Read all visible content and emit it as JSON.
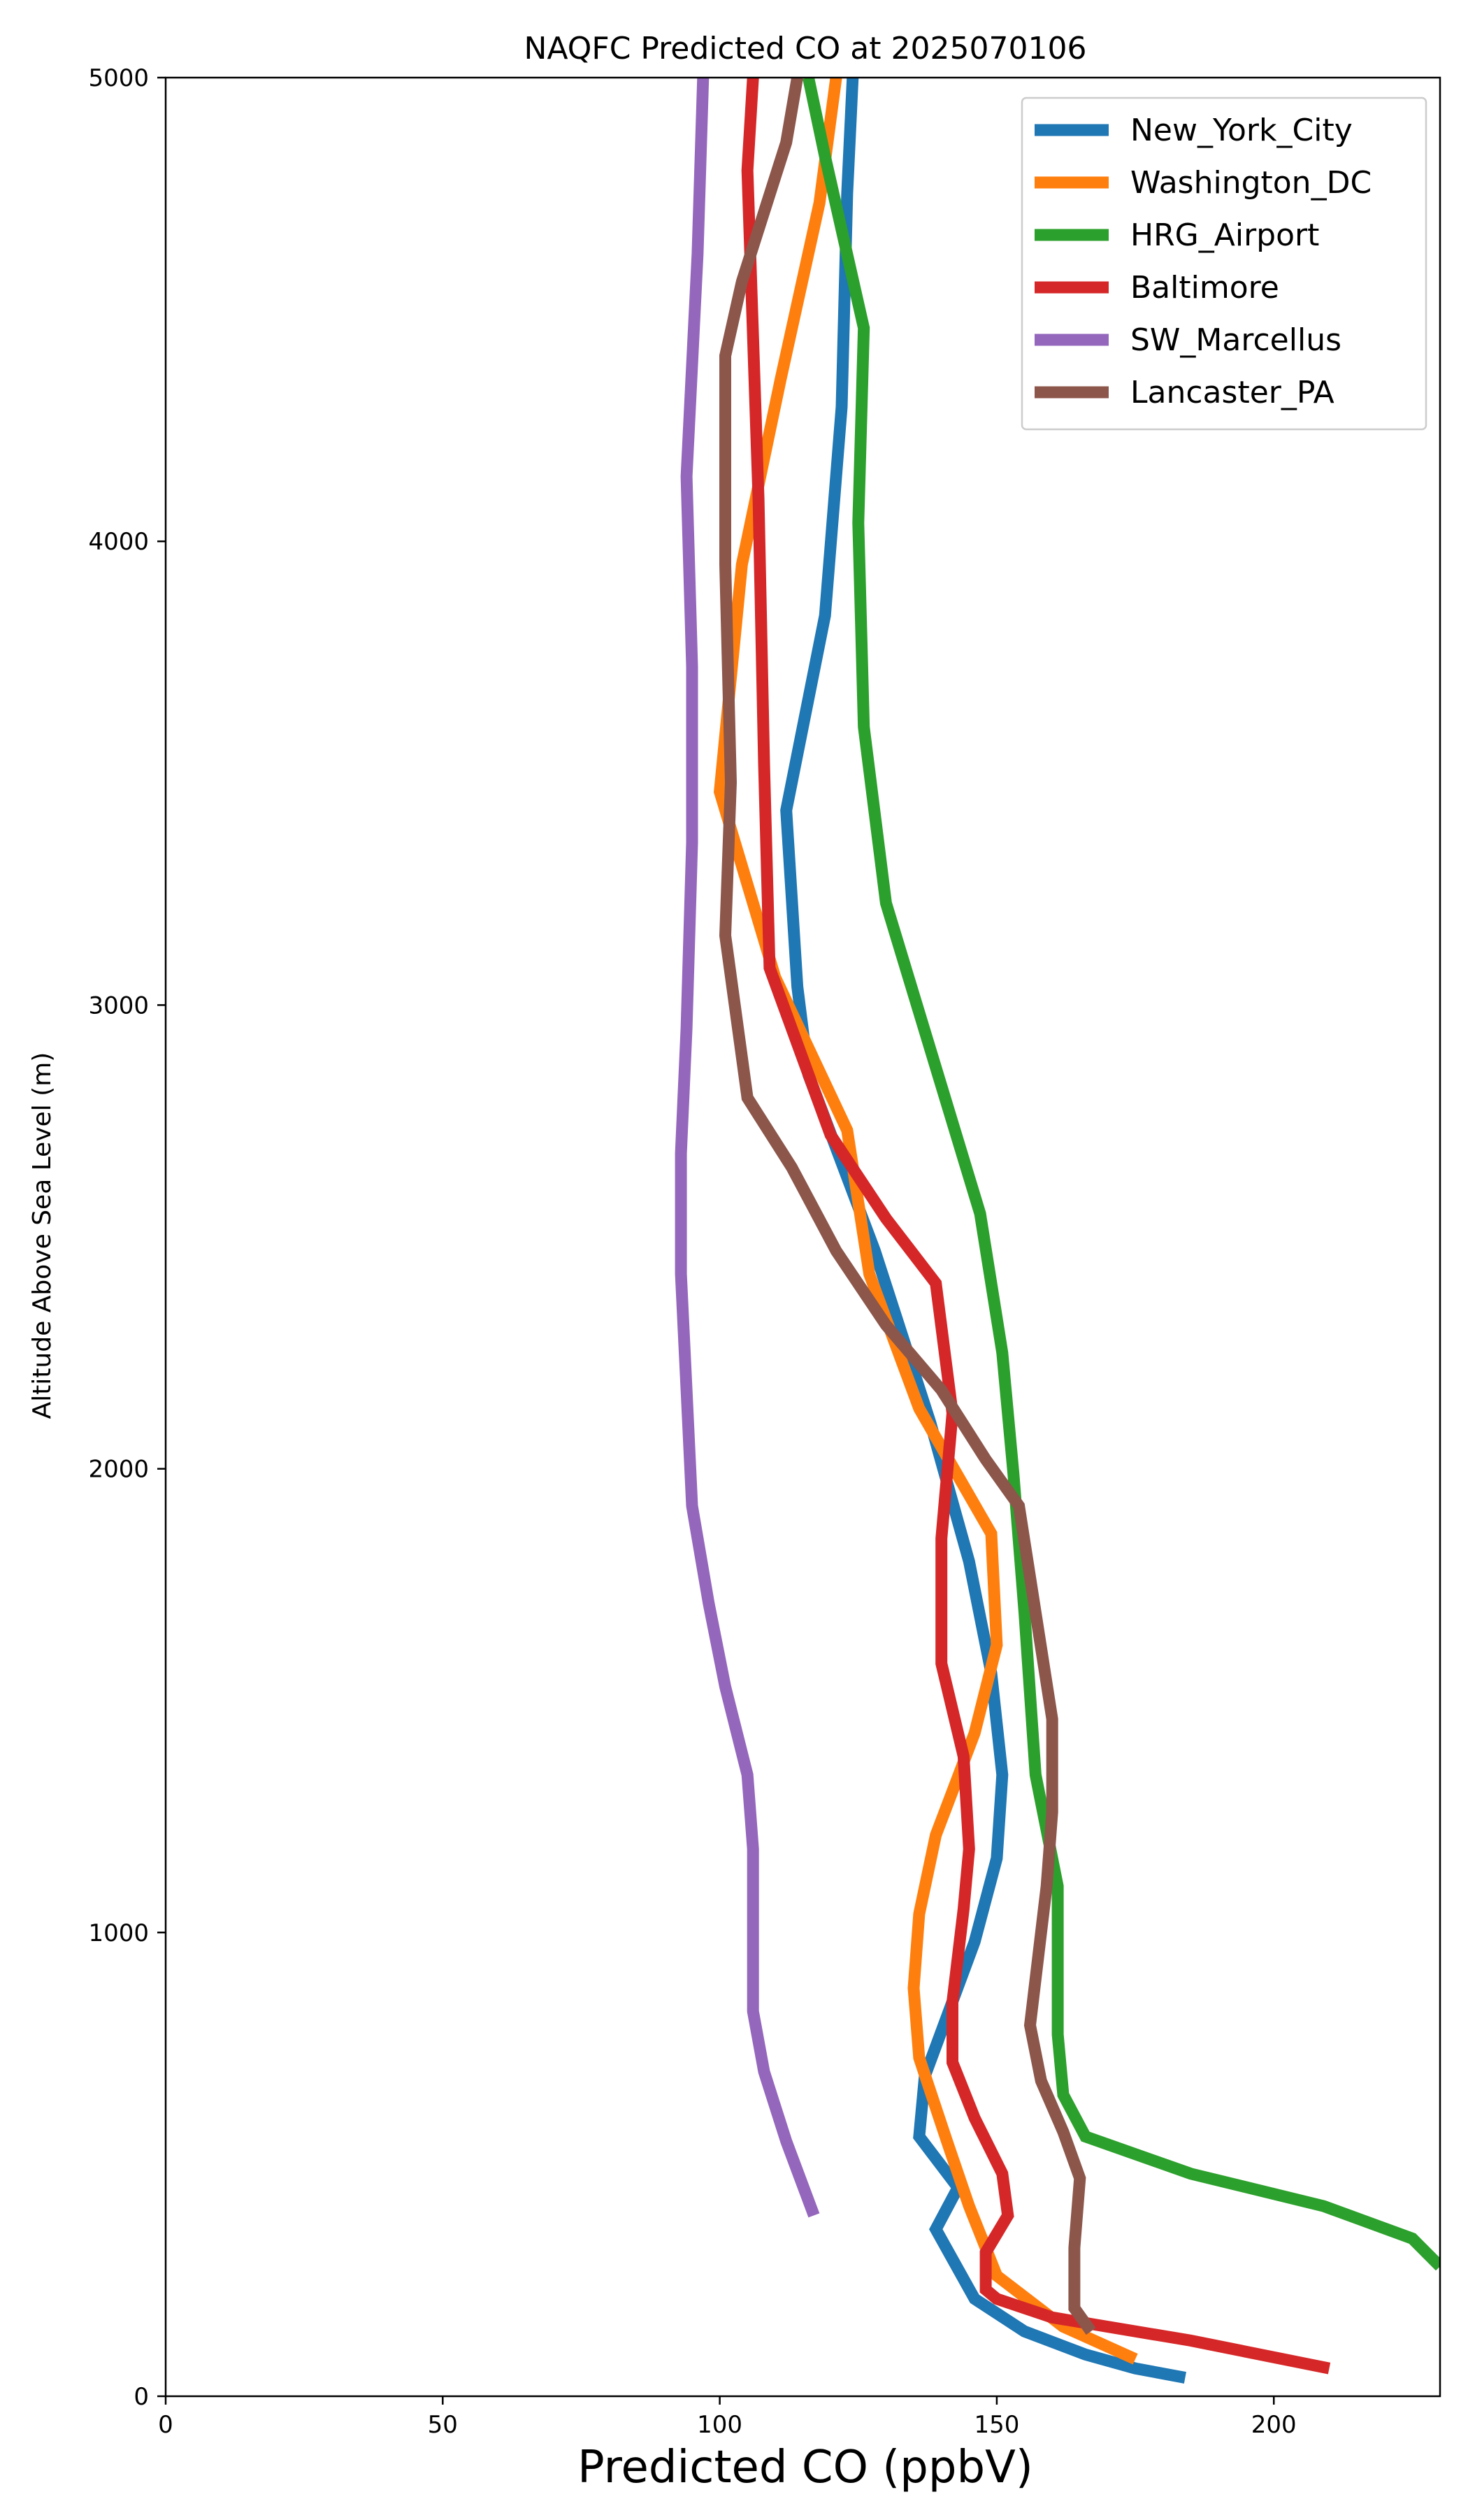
{
  "chart_data": {
    "type": "line",
    "title": "NAQFC Predicted CO at 2025070106",
    "xlabel": "Predicted CO (ppbV)",
    "ylabel": "Altitude Above Sea Level (m)",
    "xlim": [
      0,
      230
    ],
    "ylim": [
      0,
      5000
    ],
    "xticks": [
      0,
      50,
      100,
      150,
      200
    ],
    "yticks": [
      0,
      1000,
      2000,
      3000,
      4000,
      5000
    ],
    "grid": false,
    "legend_position": "top-right",
    "series": [
      {
        "name": "New_York_City",
        "color": "#1f77b4",
        "points": [
          [
            184,
            40
          ],
          [
            175,
            60
          ],
          [
            166,
            90
          ],
          [
            155,
            140
          ],
          [
            146,
            210
          ],
          [
            139,
            360
          ],
          [
            143,
            450
          ],
          [
            136,
            560
          ],
          [
            137,
            690
          ],
          [
            146,
            980
          ],
          [
            150,
            1160
          ],
          [
            151,
            1340
          ],
          [
            149,
            1560
          ],
          [
            145,
            1800
          ],
          [
            138,
            2100
          ],
          [
            128,
            2470
          ],
          [
            116,
            2850
          ],
          [
            114,
            3040
          ],
          [
            112,
            3420
          ],
          [
            119,
            3840
          ],
          [
            122,
            4290
          ],
          [
            123,
            4750
          ],
          [
            124,
            5000
          ]
        ]
      },
      {
        "name": "Washington_DC",
        "color": "#ff7f0e",
        "points": [
          [
            175,
            80
          ],
          [
            162,
            150
          ],
          [
            150,
            260
          ],
          [
            145,
            410
          ],
          [
            141,
            550
          ],
          [
            136,
            730
          ],
          [
            135,
            880
          ],
          [
            136,
            1040
          ],
          [
            139,
            1210
          ],
          [
            146,
            1430
          ],
          [
            150,
            1620
          ],
          [
            149,
            1860
          ],
          [
            136,
            2130
          ],
          [
            127,
            2420
          ],
          [
            123,
            2730
          ],
          [
            110,
            3060
          ],
          [
            100,
            3460
          ],
          [
            104,
            3950
          ],
          [
            111,
            4350
          ],
          [
            118,
            4730
          ],
          [
            121,
            5000
          ]
        ]
      },
      {
        "name": "HRG_Airport",
        "color": "#2ca02c",
        "points": [
          [
            230,
            280
          ],
          [
            225,
            340
          ],
          [
            209,
            410
          ],
          [
            185,
            480
          ],
          [
            166,
            560
          ],
          [
            162,
            650
          ],
          [
            161,
            780
          ],
          [
            161,
            1100
          ],
          [
            157,
            1340
          ],
          [
            155,
            1690
          ],
          [
            153,
            1990
          ],
          [
            151,
            2250
          ],
          [
            147,
            2550
          ],
          [
            130,
            3220
          ],
          [
            126,
            3600
          ],
          [
            125,
            4040
          ],
          [
            126,
            4460
          ],
          [
            119,
            4830
          ],
          [
            116,
            5000
          ]
        ]
      },
      {
        "name": "Baltimore",
        "color": "#d62728",
        "points": [
          [
            210,
            60
          ],
          [
            185,
            120
          ],
          [
            160,
            170
          ],
          [
            150,
            210
          ],
          [
            148,
            230
          ],
          [
            148,
            310
          ],
          [
            152,
            390
          ],
          [
            151,
            480
          ],
          [
            146,
            600
          ],
          [
            142,
            720
          ],
          [
            142,
            850
          ],
          [
            144,
            1050
          ],
          [
            145,
            1180
          ],
          [
            144,
            1380
          ],
          [
            140,
            1580
          ],
          [
            140,
            1850
          ],
          [
            142,
            2120
          ],
          [
            139,
            2400
          ],
          [
            130,
            2540
          ],
          [
            120,
            2720
          ],
          [
            109,
            3080
          ],
          [
            108,
            3520
          ],
          [
            107,
            4090
          ],
          [
            105,
            4800
          ],
          [
            106,
            5000
          ]
        ]
      },
      {
        "name": "SW_Marcellus",
        "color": "#9467bd",
        "points": [
          [
            117,
            390
          ],
          [
            112,
            550
          ],
          [
            108,
            700
          ],
          [
            106,
            830
          ],
          [
            106,
            970
          ],
          [
            106,
            1180
          ],
          [
            105,
            1340
          ],
          [
            101,
            1530
          ],
          [
            98,
            1710
          ],
          [
            95,
            1920
          ],
          [
            94,
            2170
          ],
          [
            93,
            2420
          ],
          [
            93,
            2680
          ],
          [
            94,
            2950
          ],
          [
            95,
            3350
          ],
          [
            95,
            3730
          ],
          [
            94,
            4140
          ],
          [
            96,
            4620
          ],
          [
            97,
            5000
          ]
        ]
      },
      {
        "name": "Lancaster_PA",
        "color": "#8c564b",
        "points": [
          [
            167,
            140
          ],
          [
            164,
            190
          ],
          [
            164,
            240
          ],
          [
            164,
            320
          ],
          [
            165,
            470
          ],
          [
            162,
            570
          ],
          [
            158,
            680
          ],
          [
            156,
            800
          ],
          [
            159,
            1100
          ],
          [
            160,
            1260
          ],
          [
            160,
            1460
          ],
          [
            157,
            1690
          ],
          [
            154,
            1920
          ],
          [
            148,
            2020
          ],
          [
            140,
            2170
          ],
          [
            130,
            2310
          ],
          [
            121,
            2470
          ],
          [
            113,
            2650
          ],
          [
            105,
            2800
          ],
          [
            101,
            3150
          ],
          [
            102,
            3480
          ],
          [
            101,
            3950
          ],
          [
            101,
            4400
          ],
          [
            104,
            4560
          ],
          [
            112,
            4860
          ],
          [
            114,
            5000
          ]
        ]
      }
    ]
  }
}
